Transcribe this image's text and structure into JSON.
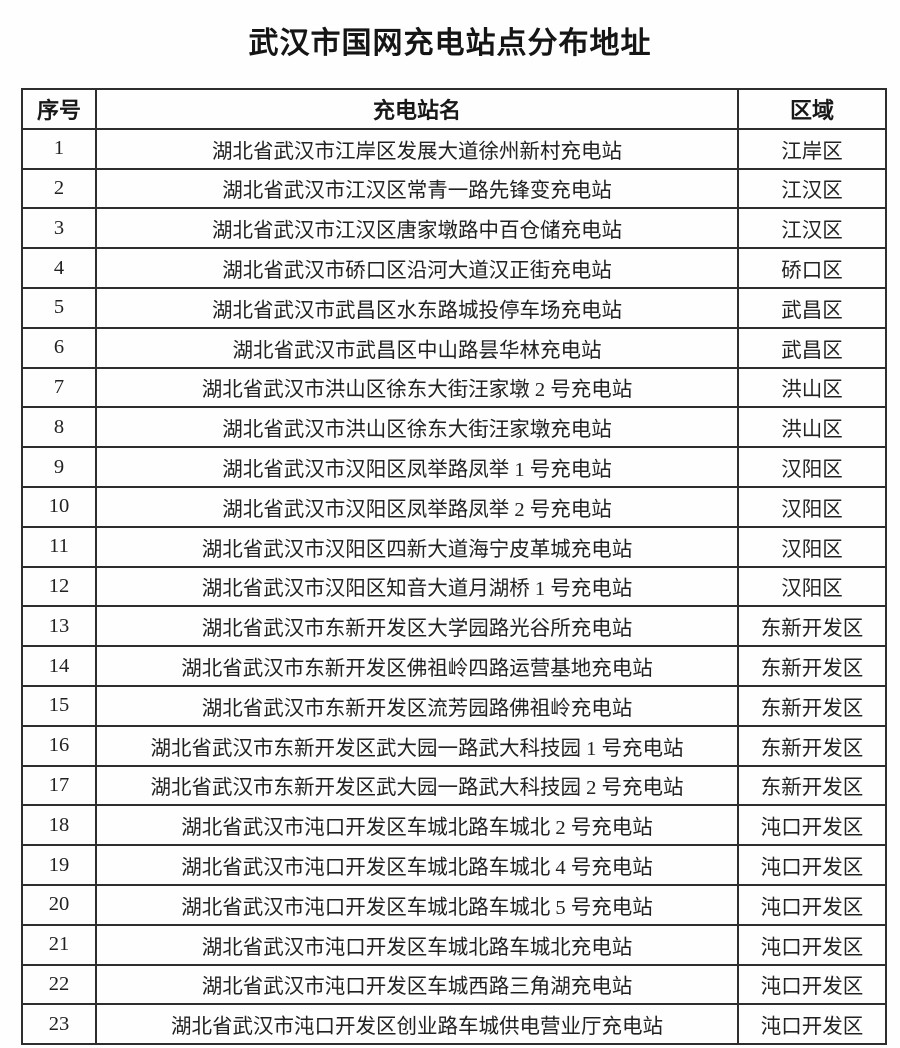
{
  "title": "武汉市国网充电站点分布地址",
  "table": {
    "headers": {
      "no": "序号",
      "name": "充电站名",
      "district": "区域"
    },
    "rows": [
      {
        "no": "1",
        "name": "湖北省武汉市江岸区发展大道徐州新村充电站",
        "district": "江岸区"
      },
      {
        "no": "2",
        "name": "湖北省武汉市江汉区常青一路先锋变充电站",
        "district": "江汉区"
      },
      {
        "no": "3",
        "name": "湖北省武汉市江汉区唐家墩路中百仓储充电站",
        "district": "江汉区"
      },
      {
        "no": "4",
        "name": "湖北省武汉市硚口区沿河大道汉正街充电站",
        "district": "硚口区"
      },
      {
        "no": "5",
        "name": "湖北省武汉市武昌区水东路城投停车场充电站",
        "district": "武昌区"
      },
      {
        "no": "6",
        "name": "湖北省武汉市武昌区中山路昙华林充电站",
        "district": "武昌区"
      },
      {
        "no": "7",
        "name": "湖北省武汉市洪山区徐东大街汪家墩 2 号充电站",
        "district": "洪山区"
      },
      {
        "no": "8",
        "name": "湖北省武汉市洪山区徐东大街汪家墩充电站",
        "district": "洪山区"
      },
      {
        "no": "9",
        "name": "湖北省武汉市汉阳区凤举路凤举 1 号充电站",
        "district": "汉阳区"
      },
      {
        "no": "10",
        "name": "湖北省武汉市汉阳区凤举路凤举 2 号充电站",
        "district": "汉阳区"
      },
      {
        "no": "11",
        "name": "湖北省武汉市汉阳区四新大道海宁皮革城充电站",
        "district": "汉阳区"
      },
      {
        "no": "12",
        "name": "湖北省武汉市汉阳区知音大道月湖桥 1 号充电站",
        "district": "汉阳区"
      },
      {
        "no": "13",
        "name": "湖北省武汉市东新开发区大学园路光谷所充电站",
        "district": "东新开发区"
      },
      {
        "no": "14",
        "name": "湖北省武汉市东新开发区佛祖岭四路运营基地充电站",
        "district": "东新开发区"
      },
      {
        "no": "15",
        "name": "湖北省武汉市东新开发区流芳园路佛祖岭充电站",
        "district": "东新开发区"
      },
      {
        "no": "16",
        "name": "湖北省武汉市东新开发区武大园一路武大科技园 1 号充电站",
        "district": "东新开发区"
      },
      {
        "no": "17",
        "name": "湖北省武汉市东新开发区武大园一路武大科技园 2 号充电站",
        "district": "东新开发区"
      },
      {
        "no": "18",
        "name": "湖北省武汉市沌口开发区车城北路车城北 2 号充电站",
        "district": "沌口开发区"
      },
      {
        "no": "19",
        "name": "湖北省武汉市沌口开发区车城北路车城北 4 号充电站",
        "district": "沌口开发区"
      },
      {
        "no": "20",
        "name": "湖北省武汉市沌口开发区车城北路车城北 5 号充电站",
        "district": "沌口开发区"
      },
      {
        "no": "21",
        "name": "湖北省武汉市沌口开发区车城北路车城北充电站",
        "district": "沌口开发区"
      },
      {
        "no": "22",
        "name": "湖北省武汉市沌口开发区车城西路三角湖充电站",
        "district": "沌口开发区"
      },
      {
        "no": "23",
        "name": "湖北省武汉市沌口开发区创业路车城供电营业厅充电站",
        "district": "沌口开发区"
      }
    ]
  }
}
